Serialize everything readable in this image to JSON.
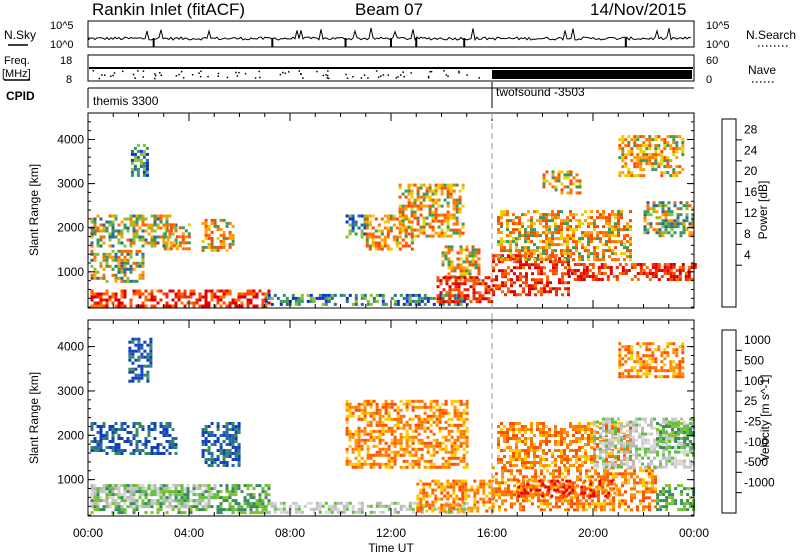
{
  "header": {
    "station": "Rankin Inlet (fitACF)",
    "beam": "Beam 07",
    "date": "14/Nov/2015"
  },
  "noise_panel": {
    "left_label": "N.Sky",
    "right_label": "N.Search",
    "ticks": [
      "10^5",
      "10^0"
    ]
  },
  "freq_panel": {
    "left_label_line1": "Freq.",
    "left_label_line2": "[MHz]",
    "left_ticks": [
      "18",
      "8"
    ],
    "right_label": "Nave",
    "right_ticks": [
      "60",
      "0"
    ]
  },
  "cpid_panel": {
    "label": "CPID",
    "programs": [
      {
        "name": "themis 3300",
        "start_hour": 0
      },
      {
        "name": "twofsound -3503",
        "start_hour": 16
      }
    ]
  },
  "chart_data": [
    {
      "type": "heatmap",
      "quantity": "Power",
      "ylabel": "Slant Range [km]",
      "xlabel": "Time UT",
      "x_ticks": [
        "00:00",
        "04:00",
        "08:00",
        "12:00",
        "16:00",
        "20:00",
        "00:00"
      ],
      "x_range_hours": [
        0,
        24
      ],
      "y_ticks": [
        1000,
        2000,
        3000,
        4000
      ],
      "y_range_km": [
        180,
        4600
      ],
      "colorbar": {
        "label": "Power [dB]",
        "ticks": [
          "28",
          "24",
          "20",
          "16",
          "12",
          "8",
          "4"
        ],
        "colors": [
          "#d80000",
          "#ee2a00",
          "#ff6a00",
          "#ffa000",
          "#e8d200",
          "#88c030",
          "#3a9a5a",
          "#2a6a9a",
          "#1030d0"
        ]
      },
      "regions": [
        {
          "t0": 0.1,
          "t1": 7.2,
          "r0": 250,
          "r1": 600,
          "level": "high"
        },
        {
          "t0": 0.1,
          "t1": 2.2,
          "r0": 800,
          "r1": 1500,
          "level": "mixed"
        },
        {
          "t0": 0.1,
          "t1": 3.5,
          "r0": 1600,
          "r1": 2300,
          "level": "mixed"
        },
        {
          "t0": 1.7,
          "t1": 2.4,
          "r0": 3200,
          "r1": 3900,
          "level": "low"
        },
        {
          "t0": 3.0,
          "t1": 4.0,
          "r0": 1500,
          "r1": 2100,
          "level": "medium"
        },
        {
          "t0": 4.5,
          "t1": 5.8,
          "r0": 1500,
          "r1": 2200,
          "level": "medium"
        },
        {
          "t0": 7.0,
          "t1": 15.0,
          "r0": 250,
          "r1": 500,
          "level": "low"
        },
        {
          "t0": 10.2,
          "t1": 11.0,
          "r0": 1800,
          "r1": 2300,
          "level": "low"
        },
        {
          "t0": 11.0,
          "t1": 12.8,
          "r0": 1500,
          "r1": 2300,
          "level": "medium"
        },
        {
          "t0": 12.3,
          "t1": 14.8,
          "r0": 1800,
          "r1": 3000,
          "level": "medium"
        },
        {
          "t0": 14.0,
          "t1": 15.5,
          "r0": 800,
          "r1": 1600,
          "level": "medium"
        },
        {
          "t0": 13.8,
          "t1": 16.0,
          "r0": 300,
          "r1": 900,
          "level": "high"
        },
        {
          "t0": 16.0,
          "t1": 19.0,
          "r0": 500,
          "r1": 1400,
          "level": "high"
        },
        {
          "t0": 16.2,
          "t1": 21.5,
          "r0": 1300,
          "r1": 2400,
          "level": "medium"
        },
        {
          "t0": 19.0,
          "t1": 24.0,
          "r0": 800,
          "r1": 1200,
          "level": "high"
        },
        {
          "t0": 22.0,
          "t1": 24.0,
          "r0": 1800,
          "r1": 2600,
          "level": "mixed"
        },
        {
          "t0": 21.0,
          "t1": 23.5,
          "r0": 3200,
          "r1": 4100,
          "level": "medium"
        },
        {
          "t0": 18.0,
          "t1": 19.5,
          "r0": 2800,
          "r1": 3300,
          "level": "medium"
        }
      ]
    },
    {
      "type": "heatmap",
      "quantity": "Velocity",
      "ylabel": "Slant Range [km]",
      "xlabel": "Time UT",
      "x_ticks": [
        "00:00",
        "04:00",
        "08:00",
        "12:00",
        "16:00",
        "20:00",
        "00:00"
      ],
      "x_range_hours": [
        0,
        24
      ],
      "y_ticks": [
        1000,
        2000,
        3000,
        4000
      ],
      "y_range_km": [
        180,
        4600
      ],
      "colorbar": {
        "label": "Velocity [m s^-1]",
        "ticks": [
          "1000",
          "500",
          "100",
          "25",
          "-25",
          "-100",
          "-500",
          "-1000"
        ],
        "colors": [
          "#1040c0",
          "#2a6aa0",
          "#3a8a60",
          "#60c040",
          "#c8c8c8",
          "#ffc800",
          "#ff9000",
          "#ff5000",
          "#e80000"
        ]
      },
      "regions": [
        {
          "t0": 0.1,
          "t1": 7.2,
          "r0": 250,
          "r1": 900,
          "level": "green"
        },
        {
          "t0": 0.1,
          "t1": 5.0,
          "r0": 400,
          "r1": 900,
          "level": "grey"
        },
        {
          "t0": 0.1,
          "t1": 3.5,
          "r0": 1600,
          "r1": 2300,
          "level": "blue"
        },
        {
          "t0": 1.6,
          "t1": 2.5,
          "r0": 3200,
          "r1": 4200,
          "level": "blue"
        },
        {
          "t0": 4.5,
          "t1": 6.0,
          "r0": 1300,
          "r1": 2300,
          "level": "blue"
        },
        {
          "t0": 7.0,
          "t1": 15.0,
          "r0": 250,
          "r1": 500,
          "level": "grey"
        },
        {
          "t0": 10.2,
          "t1": 15.0,
          "r0": 1300,
          "r1": 2800,
          "level": "orange"
        },
        {
          "t0": 13.0,
          "t1": 16.0,
          "r0": 300,
          "r1": 1000,
          "level": "orange"
        },
        {
          "t0": 16.0,
          "t1": 22.5,
          "r0": 300,
          "r1": 1300,
          "level": "orange"
        },
        {
          "t0": 17.0,
          "t1": 21.0,
          "r0": 600,
          "r1": 1000,
          "level": "red"
        },
        {
          "t0": 16.2,
          "t1": 21.5,
          "r0": 1300,
          "r1": 2300,
          "level": "orange"
        },
        {
          "t0": 20.0,
          "t1": 24.0,
          "r0": 1300,
          "r1": 2400,
          "level": "grey"
        },
        {
          "t0": 22.5,
          "t1": 24.0,
          "r0": 1700,
          "r1": 2300,
          "level": "green"
        },
        {
          "t0": 21.0,
          "t1": 23.5,
          "r0": 3300,
          "r1": 4100,
          "level": "orange"
        },
        {
          "t0": 22.5,
          "t1": 24.0,
          "r0": 300,
          "r1": 900,
          "level": "green"
        }
      ]
    }
  ]
}
